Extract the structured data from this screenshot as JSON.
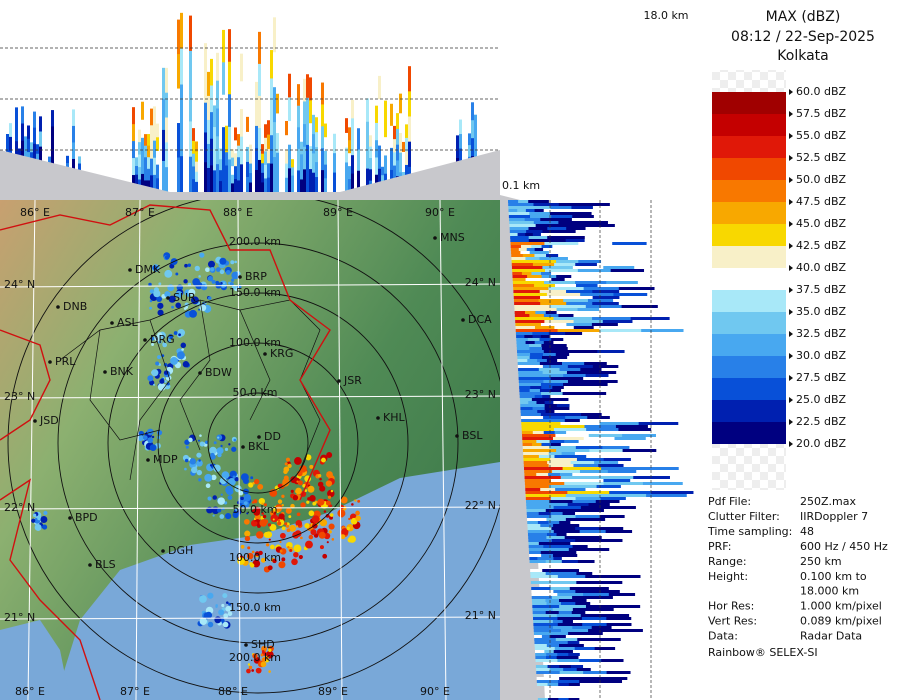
{
  "header": {
    "title": "MAX (dBZ)",
    "time": "08:12 / 22-Sep-2025",
    "site": "Kolkata"
  },
  "top_height_label": "18.0 km",
  "bottom_height_label": "0.1 km",
  "legend": [
    {
      "label": "60.0 dBZ",
      "color": "#f2f2f2"
    },
    {
      "label": "57.5 dBZ",
      "color": "#a00000"
    },
    {
      "label": "55.0 dBZ",
      "color": "#c40000"
    },
    {
      "label": "52.5 dBZ",
      "color": "#e01808"
    },
    {
      "label": "50.0 dBZ",
      "color": "#f04800"
    },
    {
      "label": "47.5 dBZ",
      "color": "#f87800"
    },
    {
      "label": "45.0 dBZ",
      "color": "#f8a800"
    },
    {
      "label": "42.5 dBZ",
      "color": "#f8d800"
    },
    {
      "label": "40.0 dBZ",
      "color": "#f8f0c8"
    },
    {
      "label": "37.5 dBZ",
      "color": "#ffffff"
    },
    {
      "label": "35.0 dBZ",
      "color": "#a8e8f8"
    },
    {
      "label": "32.5 dBZ",
      "color": "#70c8f0"
    },
    {
      "label": "30.0 dBZ",
      "color": "#48a8f0"
    },
    {
      "label": "27.5 dBZ",
      "color": "#2880e8"
    },
    {
      "label": "25.0 dBZ",
      "color": "#0850d8"
    },
    {
      "label": "22.5 dBZ",
      "color": "#0020b0"
    },
    {
      "label": "20.0 dBZ",
      "color": "#000080"
    }
  ],
  "map": {
    "towns": [
      "MNS",
      "DMK",
      "BRP",
      "DNB",
      "ASL",
      "SUR",
      "DCA",
      "PRL",
      "DRG",
      "KRG",
      "BNK",
      "BDW",
      "JSR",
      "KHL",
      "JSD",
      "BSL",
      "DD",
      "BKL",
      "MDP",
      "BPD",
      "DGH",
      "BLS",
      "SHD"
    ],
    "ranges": [
      "50.0 km",
      "100.0 km",
      "150.0 km",
      "200.0 km"
    ],
    "lon_labels": [
      "86° E",
      "87° E",
      "88° E",
      "89° E",
      "90° E"
    ],
    "lat_labels": [
      "24° N",
      "23° N",
      "22° N",
      "21° N"
    ]
  },
  "info": [
    {
      "key": "Pdf File:",
      "value": [
        "250Z.max"
      ]
    },
    {
      "key": "Clutter Filter:",
      "value": [
        "IIRDoppler 7"
      ]
    },
    {
      "key": "Time sampling:",
      "value": [
        "48"
      ]
    },
    {
      "key": "PRF:",
      "value": [
        "600 Hz / 450 Hz"
      ]
    },
    {
      "key": "Range:",
      "value": [
        "250 km"
      ]
    },
    {
      "key": "Height:",
      "value": [
        "0.100 km to",
        "18.000 km"
      ]
    },
    {
      "key": "Hor Res:",
      "value": [
        "1.000 km/pixel"
      ]
    },
    {
      "key": "Vert Res:",
      "value": [
        "0.089 km/pixel"
      ]
    },
    {
      "key": "Data:",
      "value": [
        "Radar Data"
      ]
    }
  ],
  "footer": "Rainbow® SELEX-SI"
}
